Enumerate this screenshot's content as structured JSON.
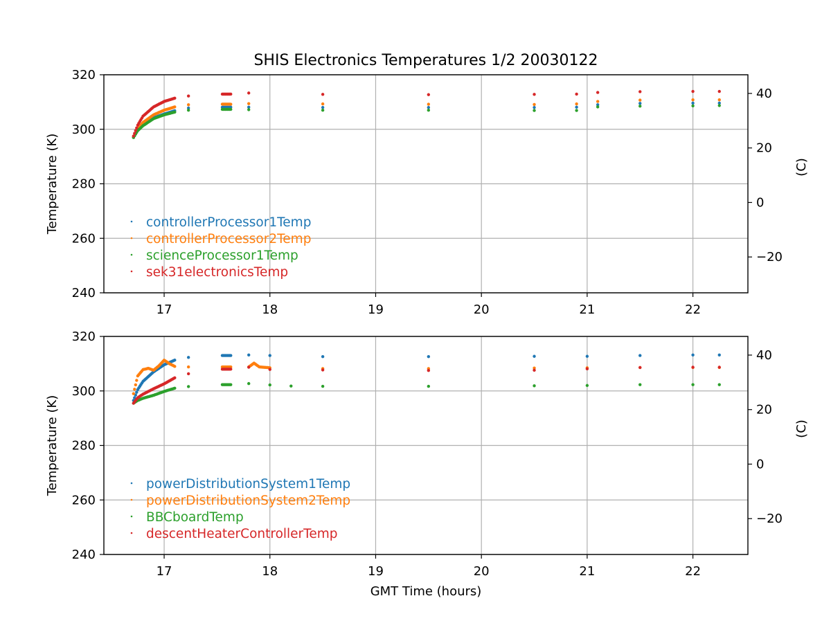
{
  "chart_data": [
    {
      "type": "scatter",
      "title": "SHIS Electronics Temperatures 1/2 20030122",
      "xlabel": "",
      "ylabel": "Temperature (K)",
      "ylabel_right": "(C)",
      "xlim": [
        16.43,
        22.52
      ],
      "ylim": [
        240,
        320
      ],
      "ylim_right_celsius": [
        -33.15,
        46.85
      ],
      "xticks": [
        "17",
        "18",
        "19",
        "20",
        "21",
        "22"
      ],
      "yticks": [
        "240",
        "260",
        "280",
        "300",
        "320"
      ],
      "yticks_right": [
        "−20",
        "0",
        "20",
        "40"
      ],
      "grid": true,
      "legend_position": "lower-left",
      "series": [
        {
          "name": "controllerProcessor1Temp",
          "color": "#1f77b4",
          "x": [
            16.71,
            16.75,
            16.8,
            16.9,
            17.0,
            17.1,
            17.23,
            17.55,
            17.63,
            17.8,
            18.5,
            19.5,
            20.5,
            20.9,
            21.1,
            21.5,
            22.0,
            22.25
          ],
          "y": [
            297,
            299.5,
            301.8,
            304.2,
            305.6,
            306.8,
            307.8,
            308.1,
            308.1,
            308.1,
            308.0,
            308.0,
            308.0,
            308.1,
            309.0,
            309.5,
            309.6,
            309.6
          ]
        },
        {
          "name": "controllerProcessor2Temp",
          "color": "#ff7f0e",
          "x": [
            16.71,
            16.75,
            16.8,
            16.9,
            17.0,
            17.1,
            17.23,
            17.55,
            17.63,
            17.8,
            18.5,
            19.5,
            20.5,
            20.9,
            21.1,
            21.5,
            22.0,
            22.25
          ],
          "y": [
            297,
            300.0,
            302.5,
            305.3,
            307.0,
            308.2,
            309.0,
            309.2,
            309.2,
            309.4,
            309.3,
            309.2,
            309.1,
            309.3,
            310.2,
            310.7,
            310.8,
            310.8
          ]
        },
        {
          "name": "scienceProcessor1Temp",
          "color": "#2ca02c",
          "x": [
            16.71,
            16.75,
            16.8,
            16.9,
            17.0,
            17.1,
            17.23,
            17.55,
            17.63,
            17.8,
            18.5,
            19.5,
            20.5,
            20.9,
            21.1,
            21.5,
            22.0,
            22.25
          ],
          "y": [
            297,
            299.5,
            301.3,
            303.9,
            305.3,
            306.3,
            307.0,
            307.3,
            307.3,
            307.2,
            307.0,
            307.0,
            306.9,
            306.9,
            308.2,
            308.5,
            308.6,
            308.7
          ]
        },
        {
          "name": "sek31electronicsTemp",
          "color": "#d62728",
          "x": [
            16.71,
            16.75,
            16.8,
            16.9,
            17.0,
            17.1,
            17.23,
            17.55,
            17.63,
            17.8,
            18.5,
            19.5,
            20.5,
            20.9,
            21.1,
            21.5,
            22.0,
            22.25
          ],
          "y": [
            297.5,
            301.5,
            304.8,
            308.2,
            310.2,
            311.4,
            312.2,
            312.9,
            312.9,
            313.3,
            312.8,
            312.7,
            312.8,
            312.9,
            313.5,
            313.8,
            313.9,
            313.9
          ]
        }
      ]
    },
    {
      "type": "scatter",
      "xlabel": "GMT Time (hours)",
      "ylabel": "Temperature (K)",
      "ylabel_right": "(C)",
      "xlim": [
        16.43,
        22.52
      ],
      "ylim": [
        240,
        320
      ],
      "ylim_right_celsius": [
        -33.15,
        46.85
      ],
      "xticks": [
        "17",
        "18",
        "19",
        "20",
        "21",
        "22"
      ],
      "yticks": [
        "240",
        "260",
        "280",
        "300",
        "320"
      ],
      "yticks_right": [
        "−20",
        "0",
        "20",
        "40"
      ],
      "grid": true,
      "legend_position": "lower-left",
      "series": [
        {
          "name": "powerDistributionSystem1Temp",
          "color": "#1f77b4",
          "x": [
            16.71,
            16.75,
            16.8,
            16.9,
            17.0,
            17.1,
            17.23,
            17.55,
            17.63,
            17.8,
            18.0,
            18.5,
            19.5,
            20.5,
            21.0,
            21.5,
            22.0,
            22.25
          ],
          "y": [
            296.5,
            300.5,
            303.5,
            307.0,
            309.6,
            311.3,
            312.3,
            313.0,
            313.0,
            313.2,
            313.0,
            312.6,
            312.6,
            312.7,
            312.7,
            313.0,
            313.2,
            313.2
          ]
        },
        {
          "name": "powerDistributionSystem2Temp",
          "color": "#ff7f0e",
          "x": [
            16.71,
            16.75,
            16.8,
            16.85,
            16.9,
            16.95,
            17.0,
            17.05,
            17.1,
            17.23,
            17.55,
            17.63,
            17.8,
            17.85,
            17.9,
            18.0,
            18.5,
            19.5,
            20.5,
            21.0,
            21.5,
            22.0,
            22.25
          ],
          "y": [
            299.0,
            305.5,
            307.8,
            308.3,
            307.6,
            309.2,
            311.3,
            310.0,
            309.0,
            308.8,
            308.8,
            308.8,
            308.8,
            310.2,
            308.8,
            308.5,
            308.2,
            308.2,
            308.4,
            308.5,
            308.6,
            308.6,
            308.6
          ]
        },
        {
          "name": "BBCboardTemp",
          "color": "#2ca02c",
          "x": [
            16.71,
            16.75,
            16.8,
            16.9,
            17.0,
            17.1,
            17.23,
            17.55,
            17.63,
            17.8,
            18.0,
            18.2,
            18.5,
            19.5,
            20.5,
            21.0,
            21.5,
            22.0,
            22.25
          ],
          "y": [
            295.5,
            296.5,
            297.3,
            298.4,
            299.8,
            301.0,
            301.6,
            302.3,
            302.3,
            302.7,
            302.2,
            301.8,
            301.7,
            301.7,
            301.9,
            302.0,
            302.3,
            302.3,
            302.3
          ]
        },
        {
          "name": "descentHeaterControllerTemp",
          "color": "#d62728",
          "x": [
            16.71,
            16.75,
            16.8,
            16.9,
            17.0,
            17.1,
            17.23,
            17.55,
            17.63,
            17.8,
            18.0,
            18.5,
            19.5,
            20.5,
            21.0,
            21.5,
            22.0,
            22.25
          ],
          "y": [
            295.5,
            297.5,
            298.8,
            300.8,
            302.6,
            304.8,
            306.3,
            308.0,
            308.0,
            308.7,
            307.9,
            307.7,
            307.5,
            307.6,
            308.1,
            308.6,
            308.7,
            308.7
          ]
        }
      ]
    }
  ]
}
